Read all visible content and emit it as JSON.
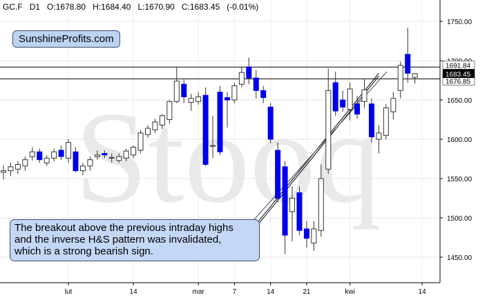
{
  "header": {
    "symbol": "GC.F",
    "interval": "D1",
    "ohlc": "O:1678.80   H:1684.40   L:1670.90   C:1683.45   (-0.01%)"
  },
  "badge": "SunshineProfits.com",
  "watermark": "Stooq",
  "callout": [
    "The breakout above the previous intraday highs",
    "and the inverse H&S pattern was invalidated,",
    "which is a strong bearish sign."
  ],
  "chart_data": {
    "type": "candlestick",
    "ylim": [
      1415,
      1775
    ],
    "y_ticks": [
      1450,
      1500,
      1550,
      1600,
      1650,
      1700,
      1750
    ],
    "y_tick_labels": [
      "1450.00",
      "1500.00",
      "1550.00",
      "1600.00",
      "1650.00",
      "1700.00",
      "1750.00"
    ],
    "x_tick_labels": [
      "lut",
      "14",
      "mar",
      "7",
      "14",
      "21",
      "kwi",
      "14"
    ],
    "x_tick_bar_index": [
      9,
      18,
      27,
      32,
      37,
      42,
      48,
      58
    ],
    "price_labels": [
      "1691.84",
      "1683.45",
      "1676.85"
    ],
    "horizontal_lines": [
      1691.84,
      1676.85
    ],
    "current_price": 1683.45,
    "trendline": {
      "from_bar": 35,
      "from_price": 1492,
      "to_bar": 52,
      "to_price": 1684
    },
    "candles": [
      {
        "o": 1558,
        "h": 1567,
        "l": 1549,
        "c": 1560
      },
      {
        "o": 1560,
        "h": 1570,
        "l": 1553,
        "c": 1565
      },
      {
        "o": 1562,
        "h": 1572,
        "l": 1556,
        "c": 1568
      },
      {
        "o": 1566,
        "h": 1578,
        "l": 1560,
        "c": 1574
      },
      {
        "o": 1578,
        "h": 1590,
        "l": 1573,
        "c": 1584
      },
      {
        "o": 1584,
        "h": 1588,
        "l": 1570,
        "c": 1574
      },
      {
        "o": 1570,
        "h": 1580,
        "l": 1566,
        "c": 1576
      },
      {
        "o": 1576,
        "h": 1588,
        "l": 1572,
        "c": 1584
      },
      {
        "o": 1586,
        "h": 1592,
        "l": 1574,
        "c": 1578
      },
      {
        "o": 1576,
        "h": 1600,
        "l": 1570,
        "c": 1596
      },
      {
        "o": 1584,
        "h": 1590,
        "l": 1558,
        "c": 1560
      },
      {
        "o": 1560,
        "h": 1570,
        "l": 1554,
        "c": 1566
      },
      {
        "o": 1566,
        "h": 1578,
        "l": 1560,
        "c": 1574
      },
      {
        "o": 1578,
        "h": 1586,
        "l": 1574,
        "c": 1580
      },
      {
        "o": 1582,
        "h": 1586,
        "l": 1576,
        "c": 1580
      },
      {
        "o": 1576,
        "h": 1582,
        "l": 1570,
        "c": 1577
      },
      {
        "o": 1573,
        "h": 1582,
        "l": 1570,
        "c": 1578
      },
      {
        "o": 1576,
        "h": 1588,
        "l": 1572,
        "c": 1585
      },
      {
        "o": 1580,
        "h": 1592,
        "l": 1576,
        "c": 1590
      },
      {
        "o": 1586,
        "h": 1612,
        "l": 1582,
        "c": 1608
      },
      {
        "o": 1606,
        "h": 1618,
        "l": 1602,
        "c": 1614
      },
      {
        "o": 1612,
        "h": 1626,
        "l": 1608,
        "c": 1622
      },
      {
        "o": 1618,
        "h": 1632,
        "l": 1613,
        "c": 1630
      },
      {
        "o": 1625,
        "h": 1650,
        "l": 1620,
        "c": 1648
      },
      {
        "o": 1648,
        "h": 1692,
        "l": 1646,
        "c": 1674
      },
      {
        "o": 1670,
        "h": 1676,
        "l": 1646,
        "c": 1654
      },
      {
        "o": 1647,
        "h": 1658,
        "l": 1636,
        "c": 1652
      },
      {
        "o": 1648,
        "h": 1660,
        "l": 1644,
        "c": 1654
      },
      {
        "o": 1656,
        "h": 1666,
        "l": 1566,
        "c": 1568
      },
      {
        "o": 1591,
        "h": 1630,
        "l": 1576,
        "c": 1592
      },
      {
        "o": 1660,
        "h": 1668,
        "l": 1580,
        "c": 1584
      },
      {
        "o": 1653,
        "h": 1660,
        "l": 1615,
        "c": 1650
      },
      {
        "o": 1650,
        "h": 1672,
        "l": 1646,
        "c": 1668
      },
      {
        "o": 1670,
        "h": 1692,
        "l": 1666,
        "c": 1685
      },
      {
        "o": 1692,
        "h": 1704,
        "l": 1670,
        "c": 1678
      },
      {
        "o": 1678,
        "h": 1688,
        "l": 1652,
        "c": 1662
      },
      {
        "o": 1662,
        "h": 1668,
        "l": 1646,
        "c": 1653
      },
      {
        "o": 1641,
        "h": 1646,
        "l": 1595,
        "c": 1600
      },
      {
        "o": 1586,
        "h": 1596,
        "l": 1520,
        "c": 1525
      },
      {
        "o": 1565,
        "h": 1572,
        "l": 1454,
        "c": 1478
      },
      {
        "o": 1508,
        "h": 1540,
        "l": 1470,
        "c": 1525
      },
      {
        "o": 1532,
        "h": 1540,
        "l": 1478,
        "c": 1484
      },
      {
        "o": 1486,
        "h": 1496,
        "l": 1462,
        "c": 1474
      },
      {
        "o": 1468,
        "h": 1496,
        "l": 1458,
        "c": 1486
      },
      {
        "o": 1484,
        "h": 1568,
        "l": 1476,
        "c": 1550
      },
      {
        "o": 1562,
        "h": 1690,
        "l": 1556,
        "c": 1662
      },
      {
        "o": 1672,
        "h": 1686,
        "l": 1630,
        "c": 1636
      },
      {
        "o": 1650,
        "h": 1662,
        "l": 1635,
        "c": 1641
      },
      {
        "o": 1638,
        "h": 1672,
        "l": 1624,
        "c": 1664
      },
      {
        "o": 1645,
        "h": 1655,
        "l": 1626,
        "c": 1632
      },
      {
        "o": 1648,
        "h": 1676,
        "l": 1640,
        "c": 1663
      },
      {
        "o": 1645,
        "h": 1652,
        "l": 1596,
        "c": 1603
      },
      {
        "o": 1600,
        "h": 1618,
        "l": 1582,
        "c": 1608
      },
      {
        "o": 1605,
        "h": 1645,
        "l": 1600,
        "c": 1640
      },
      {
        "o": 1635,
        "h": 1660,
        "l": 1625,
        "c": 1652
      },
      {
        "o": 1662,
        "h": 1699,
        "l": 1652,
        "c": 1694
      },
      {
        "o": 1708,
        "h": 1742,
        "l": 1672,
        "c": 1684
      },
      {
        "o": 1678.8,
        "h": 1684.4,
        "l": 1670.9,
        "c": 1683.45
      }
    ]
  }
}
